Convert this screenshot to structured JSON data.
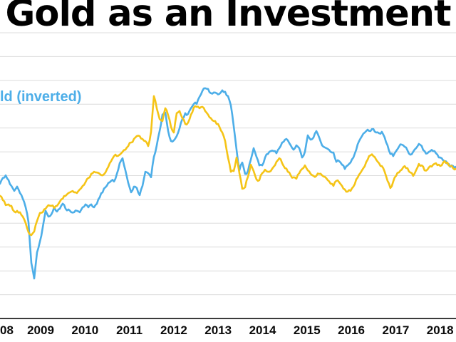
{
  "title": "Gold as an Investment",
  "legend": {
    "visible_text": "ld (inverted)",
    "note": "legend text is cut off at the left edge of the image; only 'ld (inverted)' is visible, colored in the blue series color",
    "position": "top-left"
  },
  "colors": {
    "gold_series": "#F5C417",
    "blue_series": "#4DAEE8",
    "gridline": "#DCDCDC",
    "axis": "#3B3B3B",
    "text": "#0A0A0A",
    "background": "#FFFFFF"
  },
  "chart_data": {
    "type": "line",
    "title": "Gold as an Investment",
    "grid": "horizontal gridlines only",
    "legend_position": "top-left, partially cut off at image edge",
    "x_axis": {
      "unit": "year",
      "ticks": [
        {
          "label": "08",
          "year": 2008,
          "note": "partially cut at left edge"
        },
        {
          "label": "2009",
          "year": 2009
        },
        {
          "label": "2010",
          "year": 2010
        },
        {
          "label": "2011",
          "year": 2011
        },
        {
          "label": "2012",
          "year": 2012
        },
        {
          "label": "2013",
          "year": 2013
        },
        {
          "label": "2014",
          "year": 2014
        },
        {
          "label": "2015",
          "year": 2015
        },
        {
          "label": "2016",
          "year": 2016
        },
        {
          "label": "2017",
          "year": 2017
        },
        {
          "label": "2018",
          "year": 2018
        }
      ],
      "range": [
        2008.08,
        2018.36
      ]
    },
    "y_axis": {
      "tick_labels": [],
      "labels_visible": false,
      "unit": "gridline index (no numeric labels visible; 0 = bottom axis line, each horizontal gridline = +1, top gridline = 12)",
      "range": [
        0,
        12
      ],
      "gridline_count": 12
    },
    "series": [
      {
        "id": "blue",
        "legend_label": "ld (inverted)",
        "color_key": "blue_series",
        "x_start_year": 2008.085,
        "x_step_year": 0.0642,
        "values": [
          5.66,
          5.9,
          6.01,
          5.81,
          5.57,
          5.36,
          5.54,
          5.27,
          5.03,
          4.67,
          4.04,
          2.33,
          1.68,
          2.78,
          3.23,
          3.83,
          4.52,
          4.28,
          4.37,
          4.67,
          4.49,
          4.61,
          4.82,
          4.61,
          4.58,
          4.46,
          4.46,
          4.52,
          4.46,
          4.67,
          4.79,
          4.67,
          4.79,
          4.67,
          4.82,
          5.09,
          5.3,
          5.51,
          5.69,
          5.78,
          5.75,
          6.07,
          6.52,
          6.73,
          6.22,
          5.69,
          5.3,
          5.54,
          5.48,
          5.18,
          5.57,
          6.16,
          6.1,
          5.93,
          6.79,
          7.27,
          7.87,
          8.56,
          8.65,
          7.87,
          7.45,
          7.48,
          7.66,
          7.99,
          8.38,
          8.62,
          8.59,
          8.83,
          9.01,
          9.01,
          9.31,
          9.55,
          9.67,
          9.64,
          9.46,
          9.49,
          9.46,
          9.43,
          9.58,
          9.52,
          9.34,
          8.95,
          8.08,
          7.09,
          6.22,
          6.55,
          6.07,
          6.19,
          6.67,
          7.15,
          6.79,
          6.43,
          6.43,
          6.76,
          6.91,
          7.03,
          7.03,
          6.94,
          7.15,
          7.39,
          7.51,
          7.48,
          7.27,
          7.09,
          7.27,
          7.15,
          6.76,
          7.0,
          7.69,
          7.51,
          7.6,
          7.87,
          7.6,
          7.27,
          7.18,
          7.12,
          7.0,
          6.97,
          6.58,
          6.61,
          6.46,
          6.28,
          6.43,
          6.55,
          6.76,
          7.09,
          7.45,
          7.66,
          7.81,
          7.93,
          7.87,
          7.96,
          7.81,
          7.78,
          7.84,
          7.6,
          7.27,
          6.91,
          6.82,
          7.03,
          7.21,
          7.3,
          7.21,
          7.06,
          6.88,
          7.0,
          7.15,
          7.33,
          7.24,
          7.03,
          6.94,
          7.03,
          7.03,
          6.94,
          6.76,
          6.73,
          6.61,
          6.49,
          6.37,
          6.4,
          6.37
        ]
      },
      {
        "id": "gold",
        "legend_label": null,
        "color_key": "gold_series",
        "x_start_year": 2008.085,
        "x_step_year": 0.0642,
        "values": [
          5.15,
          4.97,
          4.76,
          4.79,
          4.73,
          4.49,
          4.52,
          4.46,
          4.28,
          4.01,
          3.62,
          3.5,
          3.65,
          4.1,
          4.43,
          4.46,
          4.61,
          4.76,
          4.73,
          4.64,
          4.73,
          4.91,
          5.03,
          5.15,
          5.27,
          5.33,
          5.3,
          5.27,
          5.42,
          5.57,
          5.72,
          5.9,
          6.07,
          6.16,
          6.13,
          6.07,
          6.01,
          6.13,
          6.37,
          6.61,
          6.82,
          6.82,
          6.88,
          7.0,
          7.09,
          7.24,
          7.39,
          7.54,
          7.66,
          7.66,
          7.54,
          7.45,
          7.24,
          7.84,
          9.34,
          8.83,
          8.38,
          8.29,
          8.83,
          8.53,
          8.05,
          7.81,
          8.62,
          8.71,
          8.41,
          8.17,
          8.23,
          8.56,
          8.86,
          8.89,
          8.83,
          8.89,
          8.71,
          8.56,
          8.41,
          8.29,
          8.17,
          8.05,
          7.81,
          7.45,
          6.76,
          6.16,
          6.19,
          6.76,
          6.1,
          5.45,
          5.51,
          5.95,
          6.46,
          6.19,
          5.84,
          5.81,
          6.1,
          6.25,
          6.16,
          6.19,
          6.37,
          6.58,
          6.73,
          6.52,
          6.31,
          6.16,
          6.01,
          5.93,
          5.87,
          6.1,
          6.28,
          6.43,
          6.22,
          6.07,
          5.99,
          5.99,
          6.07,
          6.01,
          5.95,
          5.81,
          5.66,
          5.57,
          5.78,
          5.72,
          5.57,
          5.42,
          5.33,
          5.36,
          5.54,
          5.84,
          6.04,
          6.22,
          6.4,
          6.67,
          6.85,
          6.82,
          6.67,
          6.52,
          6.4,
          6.16,
          5.78,
          5.48,
          5.75,
          5.99,
          6.13,
          6.25,
          6.4,
          6.31,
          6.13,
          5.99,
          6.22,
          6.49,
          6.43,
          6.22,
          6.25,
          6.4,
          6.46,
          6.52,
          6.46,
          6.43,
          6.61,
          6.55,
          6.4,
          6.31,
          6.28
        ]
      }
    ]
  }
}
